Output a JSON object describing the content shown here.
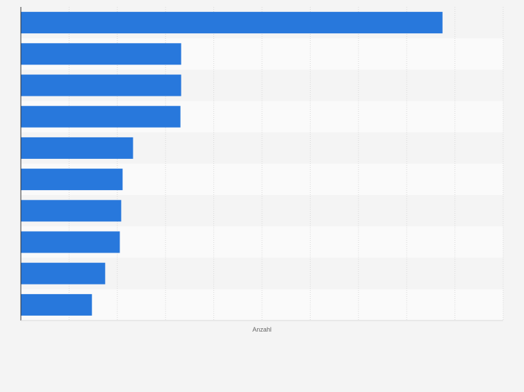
{
  "chart_data": {
    "type": "bar",
    "orientation": "horizontal",
    "xlabel": "Anzahl",
    "values": [
      605,
      230,
      230,
      229,
      161,
      146,
      144,
      142,
      121,
      102
    ],
    "xlim": [
      0,
      692
    ],
    "grid": true,
    "legend": "none",
    "colors": {
      "bar": "#2878dc",
      "band_light": "#fafafa",
      "band_dark": "#f4f4f4",
      "grid": "#d8d8d8",
      "axis": "#333333",
      "axis_label": "#666666",
      "background": "#f4f4f4"
    }
  }
}
